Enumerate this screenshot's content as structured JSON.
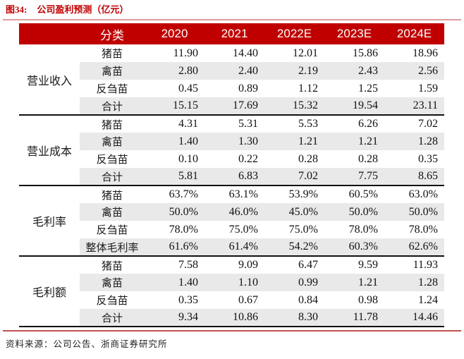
{
  "title": {
    "prefix": "图34:",
    "text": "公司盈利预测（亿元）"
  },
  "source": "资料来源：公司公告、浙商证券研究所",
  "colors": {
    "accent_red": "#c00000",
    "header_bg": "#c00000",
    "band_gray": "#e9e9e9",
    "rule_top": "#dd9b9b",
    "rule_bottom": "#c0504d",
    "separator_black": "#111111"
  },
  "chart_data": {
    "type": "table",
    "title": "公司盈利预测（亿元）",
    "columns": [
      "分类",
      "2020",
      "2021",
      "2022E",
      "2023E",
      "2024E"
    ],
    "groups": [
      {
        "name": "营业收入",
        "rows": [
          {
            "label": "猪苗",
            "values": [
              "11.90",
              "14.40",
              "12.01",
              "15.86",
              "18.96"
            ]
          },
          {
            "label": "禽苗",
            "values": [
              "2.80",
              "2.40",
              "2.19",
              "2.43",
              "2.56"
            ]
          },
          {
            "label": "反刍苗",
            "values": [
              "0.45",
              "0.89",
              "1.12",
              "1.25",
              "1.59"
            ]
          },
          {
            "label": "合计",
            "values": [
              "15.15",
              "17.69",
              "15.32",
              "19.54",
              "23.11"
            ]
          }
        ]
      },
      {
        "name": "营业成本",
        "rows": [
          {
            "label": "猪苗",
            "values": [
              "4.31",
              "5.31",
              "5.53",
              "6.26",
              "7.02"
            ]
          },
          {
            "label": "禽苗",
            "values": [
              "1.40",
              "1.30",
              "1.21",
              "1.21",
              "1.28"
            ]
          },
          {
            "label": "反刍苗",
            "values": [
              "0.10",
              "0.22",
              "0.28",
              "0.28",
              "0.35"
            ]
          },
          {
            "label": "合计",
            "values": [
              "5.81",
              "6.83",
              "7.02",
              "7.75",
              "8.65"
            ]
          }
        ]
      },
      {
        "name": "毛利率",
        "rows": [
          {
            "label": "猪苗",
            "values": [
              "63.7%",
              "63.1%",
              "53.9%",
              "60.5%",
              "63.0%"
            ]
          },
          {
            "label": "禽苗",
            "values": [
              "50.0%",
              "46.0%",
              "45.0%",
              "50.0%",
              "50.0%"
            ]
          },
          {
            "label": "反刍苗",
            "values": [
              "78.0%",
              "75.0%",
              "75.0%",
              "78.0%",
              "78.0%"
            ]
          },
          {
            "label": "整体毛利率",
            "values": [
              "61.6%",
              "61.4%",
              "54.2%",
              "60.3%",
              "62.6%"
            ]
          }
        ]
      },
      {
        "name": "毛利额",
        "rows": [
          {
            "label": "猪苗",
            "values": [
              "7.58",
              "9.09",
              "6.47",
              "9.59",
              "11.93"
            ]
          },
          {
            "label": "禽苗",
            "values": [
              "1.40",
              "1.10",
              "0.99",
              "1.21",
              "1.28"
            ]
          },
          {
            "label": "反刍苗",
            "values": [
              "0.35",
              "0.67",
              "0.84",
              "0.98",
              "1.24"
            ]
          },
          {
            "label": "合计",
            "values": [
              "9.34",
              "10.86",
              "8.30",
              "11.78",
              "14.46"
            ]
          }
        ]
      }
    ]
  }
}
